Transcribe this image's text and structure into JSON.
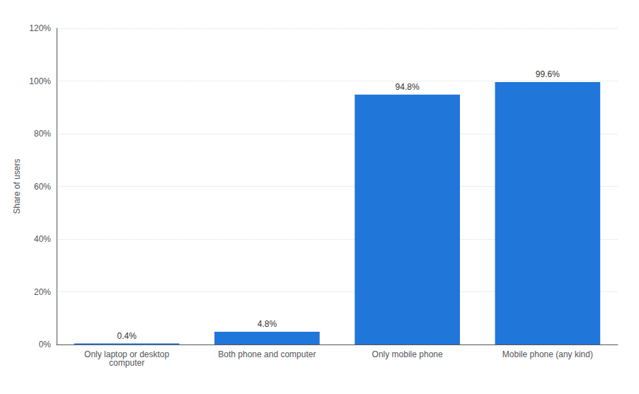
{
  "chart_data": {
    "type": "bar",
    "categories": [
      "Only laptop or desktop\ncomputer",
      "Both phone and computer",
      "Only mobile phone",
      "Mobile phone (any kind)"
    ],
    "values": [
      0.4,
      4.8,
      94.8,
      99.6
    ],
    "value_labels": [
      "0.4%",
      "4.8%",
      "94.8%",
      "99.6%"
    ],
    "data_labels": true,
    "color": "#2176d9",
    "ylabel": "Share of users",
    "ylim": [
      0,
      120
    ],
    "yticks": [
      {
        "value": 0,
        "label": "0%"
      },
      {
        "value": 20,
        "label": "20%"
      },
      {
        "value": 40,
        "label": "40%"
      },
      {
        "value": 60,
        "label": "60%"
      },
      {
        "value": 80,
        "label": "80%"
      },
      {
        "value": 100,
        "label": "100%"
      },
      {
        "value": 120,
        "label": "120%"
      }
    ],
    "grid": true
  }
}
